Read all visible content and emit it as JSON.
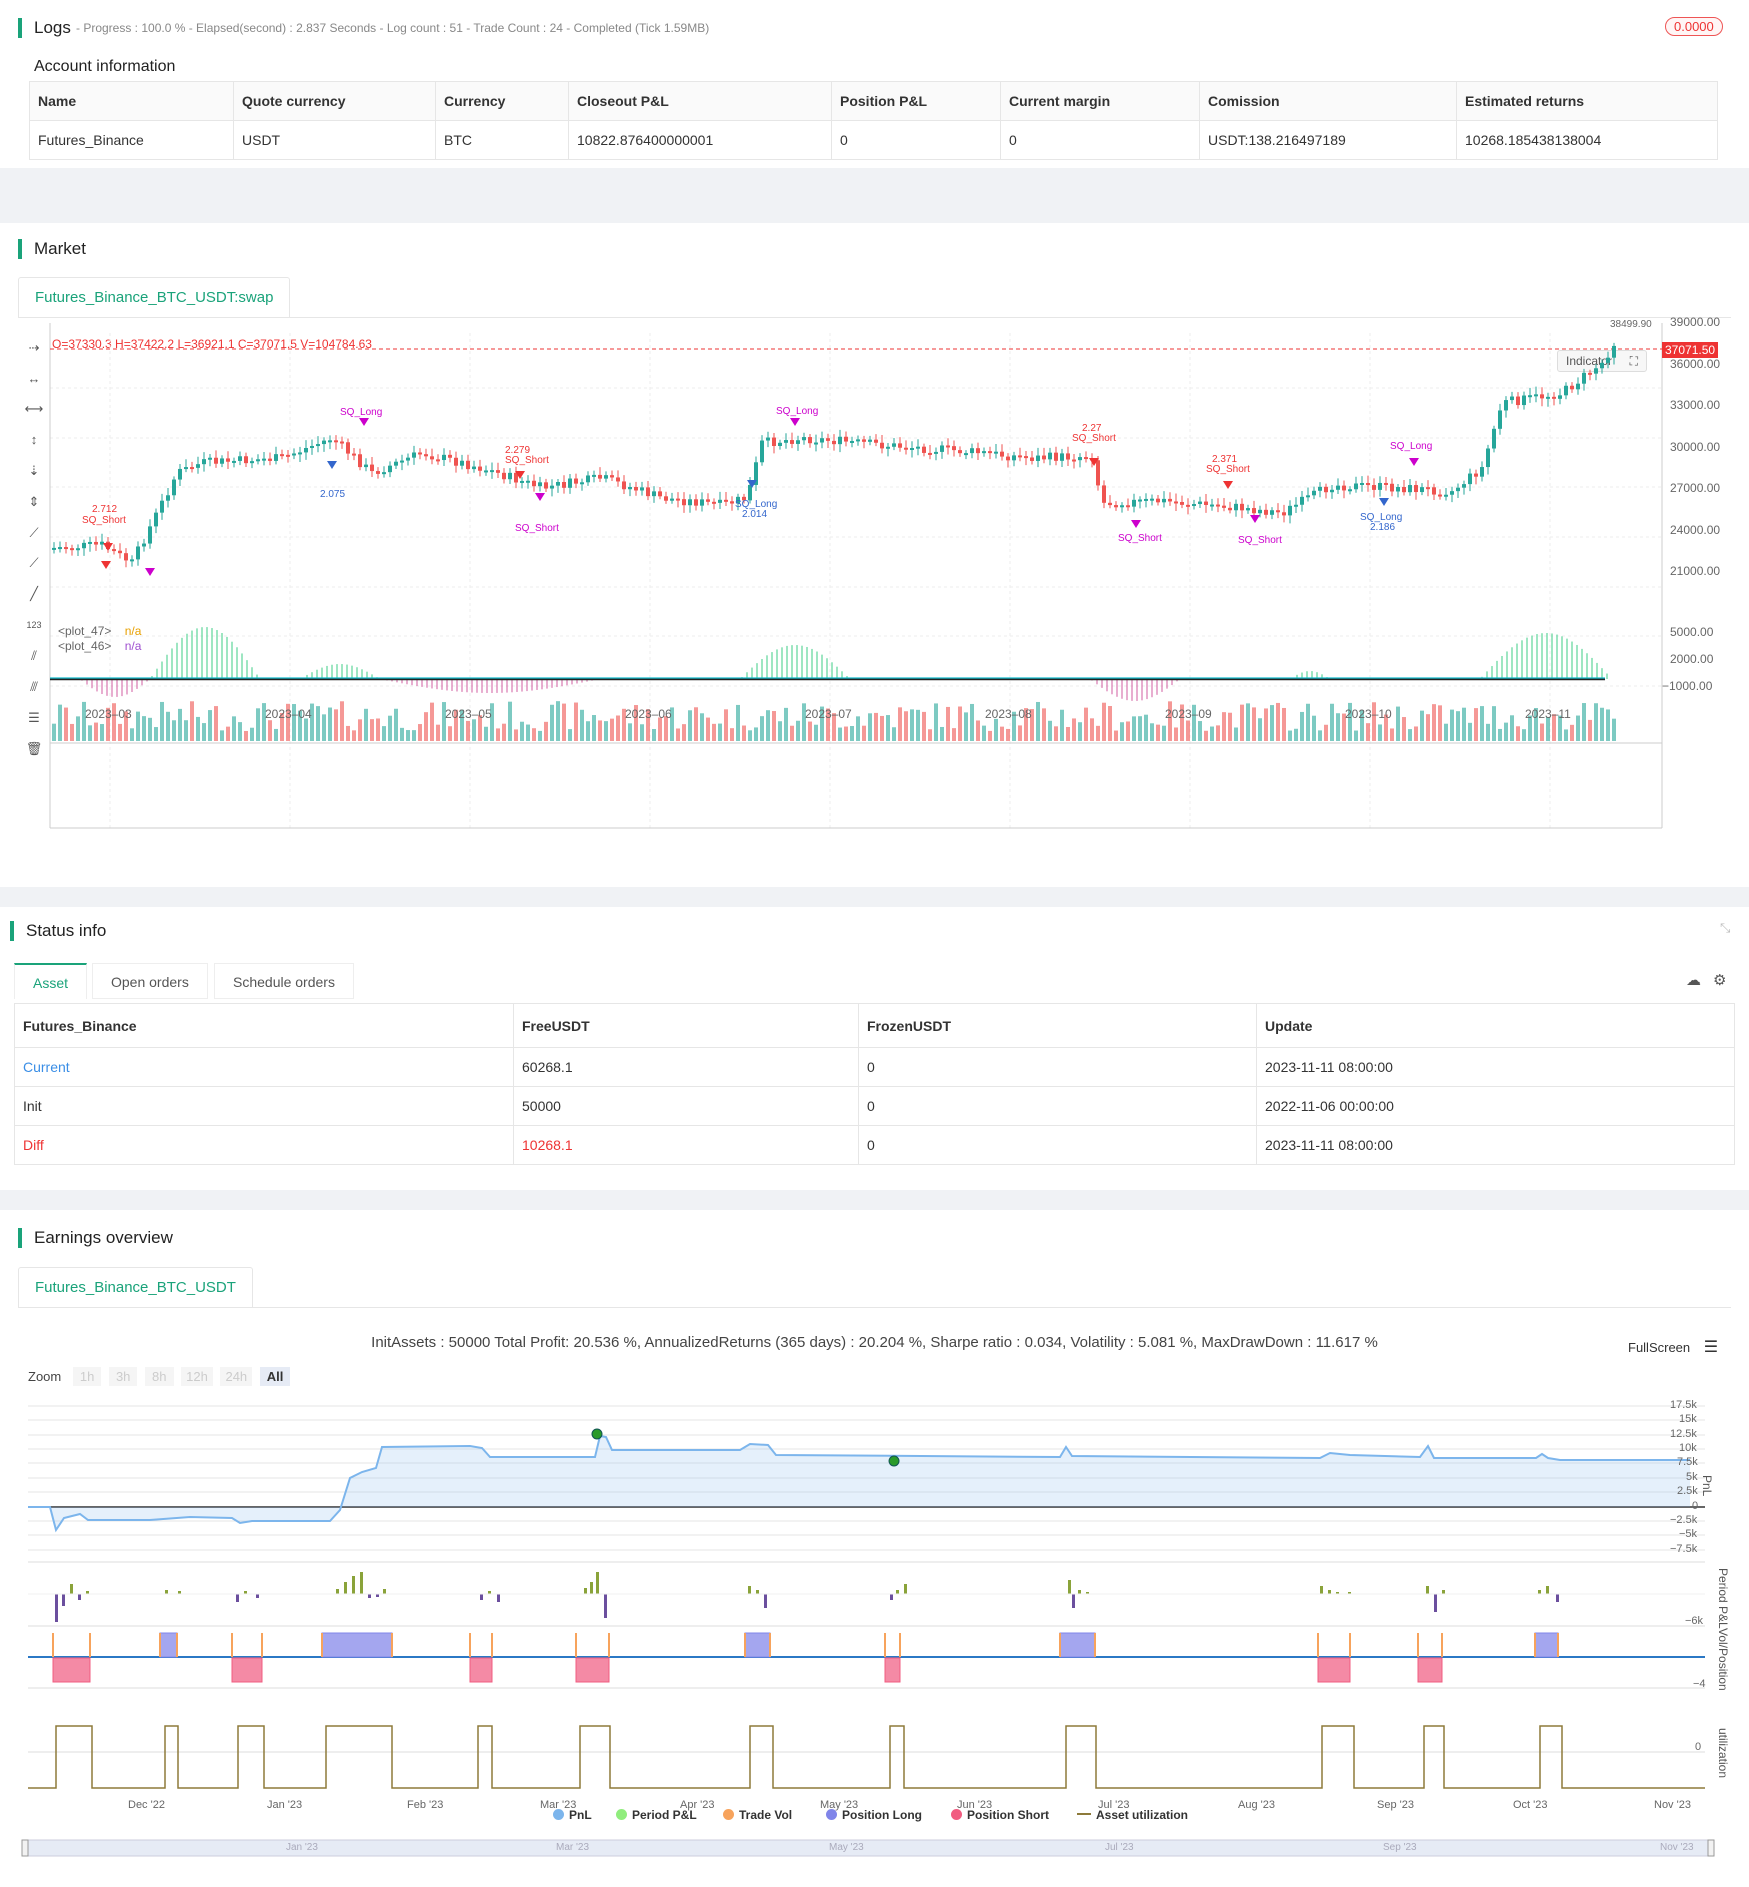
{
  "logs": {
    "title": "Logs",
    "status_text": "- Progress : 100.0 % - Elapsed(second) : 2.837  Seconds - Log count : 51 - Trade Count : 24 - Completed (Tick 1.59MB)",
    "badge": "0.0000"
  },
  "account": {
    "title": "Account information",
    "headers": [
      "Name",
      "Quote currency",
      "Currency",
      "Closeout P&L",
      "Position P&L",
      "Current margin",
      "Comission",
      "Estimated returns"
    ],
    "row": [
      "Futures_Binance",
      "USDT",
      "BTC",
      "10822.876400000001",
      "0",
      "0",
      "USDT:138.216497189",
      "10268.185438138004"
    ]
  },
  "market": {
    "title": "Market",
    "tab": "Futures_Binance_BTC_USDT:swap",
    "ohlc": "O=37330.3  H=37422.2  L=36921.1  C=37071.5  V=104784.63",
    "indicator_button": "Indicator",
    "price_ticks": [
      "39000.00",
      "36000.00",
      "33000.00",
      "30000.00",
      "27000.00",
      "24000.00",
      "21000.00"
    ],
    "osc_ticks": [
      "5000.00",
      "2000.00",
      "−1000.00"
    ],
    "current_price": "37071.50",
    "high_marker": "38499.90",
    "x_ticks": [
      "2023–03",
      "2023–04",
      "2023–05",
      "2023–06",
      "2023–07",
      "2023–08",
      "2023–09",
      "2023–10",
      "2023–11"
    ],
    "plot_labels": [
      {
        "name": "<plot_47>",
        "value": "n/a"
      },
      {
        "name": "<plot_46>",
        "value": "n/a"
      }
    ],
    "trade_labels": [
      {
        "text": "2.712",
        "color": "#e33"
      },
      {
        "text": "SQ_Short",
        "color": "#e33"
      },
      {
        "text": "SQ_Long",
        "color": "#c0c"
      },
      {
        "text": "2.075",
        "color": "#36c"
      },
      {
        "text": "2.279",
        "color": "#e33"
      },
      {
        "text": "SQ_Short",
        "color": "#e33"
      },
      {
        "text": "SQ_Short",
        "color": "#c0c"
      },
      {
        "text": "SQ_Long",
        "color": "#c0c"
      },
      {
        "text": "SQ_Long",
        "color": "#36c"
      },
      {
        "text": "2.014",
        "color": "#36c"
      },
      {
        "text": "2.27",
        "color": "#e33"
      },
      {
        "text": "SQ_Short",
        "color": "#e33"
      },
      {
        "text": "2.371",
        "color": "#e33"
      },
      {
        "text": "SQ_Short",
        "color": "#e33"
      },
      {
        "text": "SQ_Short",
        "color": "#c0c"
      },
      {
        "text": "SQ_Short",
        "color": "#c0c"
      },
      {
        "text": "SQ_Long",
        "color": "#c0c"
      },
      {
        "text": "SQ_Long",
        "color": "#36c"
      },
      {
        "text": "2.186",
        "color": "#36c"
      }
    ]
  },
  "status": {
    "title": "Status info",
    "tabs": [
      "Asset",
      "Open orders",
      "Schedule orders"
    ],
    "headers": [
      "Futures_Binance",
      "FreeUSDT",
      "FrozenUSDT",
      "Update"
    ],
    "rows": [
      {
        "label": "Current",
        "free": "60268.1",
        "frozen": "0",
        "update": "2023-11-11 08:00:00"
      },
      {
        "label": "Init",
        "free": "50000",
        "frozen": "0",
        "update": "2022-11-06 00:00:00"
      },
      {
        "label": "Diff",
        "free": "10268.1",
        "frozen": "0",
        "update": "2023-11-11 08:00:00"
      }
    ]
  },
  "earnings": {
    "title": "Earnings overview",
    "tab": "Futures_Binance_BTC_USDT",
    "summary": "InitAssets : 50000 Total Profit: 20.536 %, AnnualizedReturns (365 days) : 20.204 %, Sharpe ratio : 0.034, Volatility : 5.081 %, MaxDrawDown : 11.617 %",
    "fullscreen": "FullScreen",
    "zoom_label": "Zoom",
    "zoom_options": [
      "1h",
      "3h",
      "8h",
      "12h",
      "24h",
      "All"
    ],
    "pnl_ticks": [
      "17.5k",
      "15k",
      "12.5k",
      "10k",
      "7.5k",
      "5k",
      "2.5k",
      "0",
      "−2.5k",
      "−5k",
      "−7.5k"
    ],
    "ppl_tick": "−6k",
    "vol_tick": "−4",
    "util_tick": "0",
    "side_labels": [
      "PnL",
      "Period P&L",
      "Vol/Position",
      "utilization"
    ],
    "x_ticks": [
      "Dec '22",
      "Jan '23",
      "Feb '23",
      "Mar '23",
      "Apr '23",
      "May '23",
      "Jun '23",
      "Jul '23",
      "Aug '23",
      "Sep '23",
      "Oct '23",
      "Nov '23"
    ],
    "nav_ticks": [
      "Jan '23",
      "Mar '23",
      "May '23",
      "Jul '23",
      "Sep '23",
      "Nov '23"
    ],
    "legend": [
      {
        "name": "PnL",
        "color": "#7cb5ec"
      },
      {
        "name": "Period P&L",
        "color": "#90ed7d"
      },
      {
        "name": "Trade Vol",
        "color": "#f7a35c"
      },
      {
        "name": "Position Long",
        "color": "#8085e9"
      },
      {
        "name": "Position Short",
        "color": "#f15c80"
      },
      {
        "name": "Asset utilization",
        "color": "#8d7a3a"
      }
    ]
  }
}
